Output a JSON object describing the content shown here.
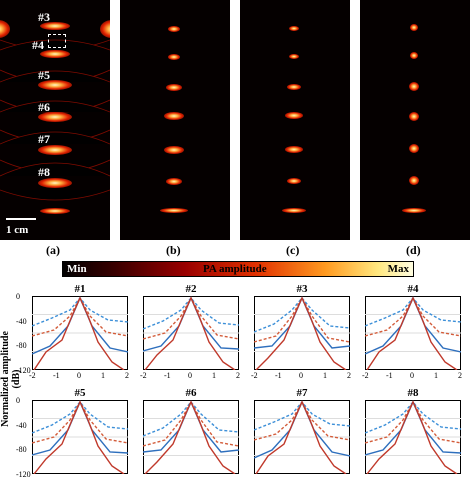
{
  "image_panels": [
    {
      "caption": "(a)",
      "markers": [
        "#3",
        "#4",
        "#5",
        "#6",
        "#7",
        "#8"
      ],
      "scale_bar": "1 cm"
    },
    {
      "caption": "(b)"
    },
    {
      "caption": "(c)"
    },
    {
      "caption": "(d)"
    }
  ],
  "colorbar": {
    "min_label": "Min",
    "title": "PA amplitude",
    "max_label": "Max"
  },
  "plots": {
    "ylabel": "Normalized amplitude (dB)",
    "titles": [
      "#1",
      "#2",
      "#3",
      "#4",
      "#5",
      "#6",
      "#7",
      "#8"
    ],
    "yticks": [
      "0",
      "-40",
      "-80",
      "-120"
    ],
    "xticks": [
      "-2",
      "-1",
      "0",
      "1",
      "2"
    ]
  },
  "colors": {
    "solid_red": "#c0392b",
    "solid_blue": "#2e6fbd",
    "dashed_red": "#d35c3a",
    "dashed_blue": "#3c8fd8"
  }
}
